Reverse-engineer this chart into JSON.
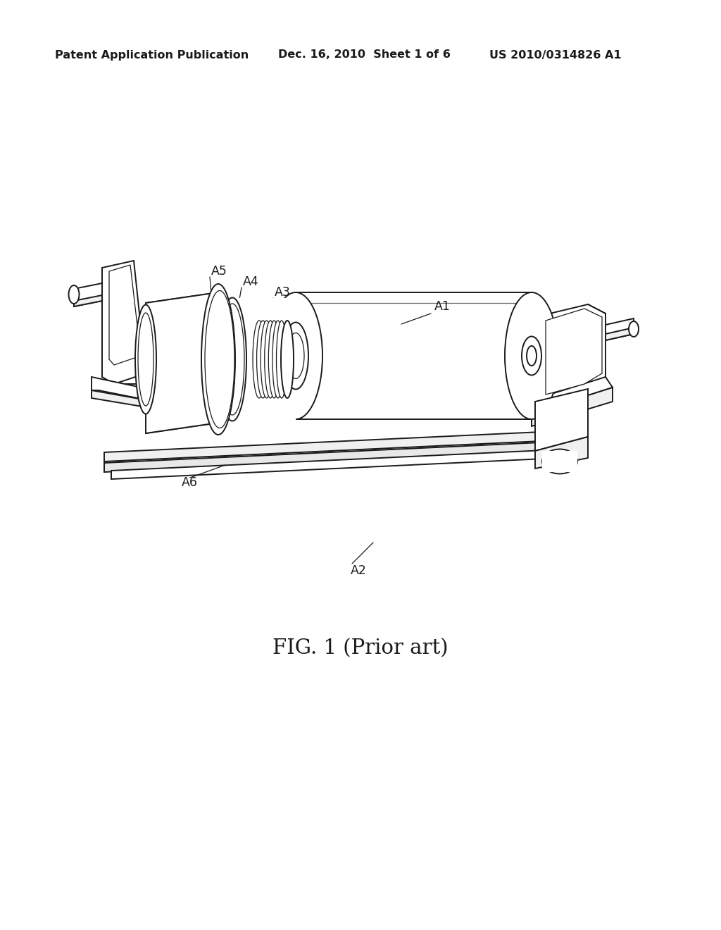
{
  "background_color": "#ffffff",
  "header_left": "Patent Application Publication",
  "header_center": "Dec. 16, 2010  Sheet 1 of 6",
  "header_right": "US 2010/0314826 A1",
  "caption": "FIG. 1 (Prior art)",
  "header_fontsize": 11.5,
  "caption_fontsize": 21,
  "line_color": "#1a1a1a",
  "label_fontsize": 12.5,
  "page_width": 10.24,
  "page_height": 13.2,
  "dpi": 100
}
